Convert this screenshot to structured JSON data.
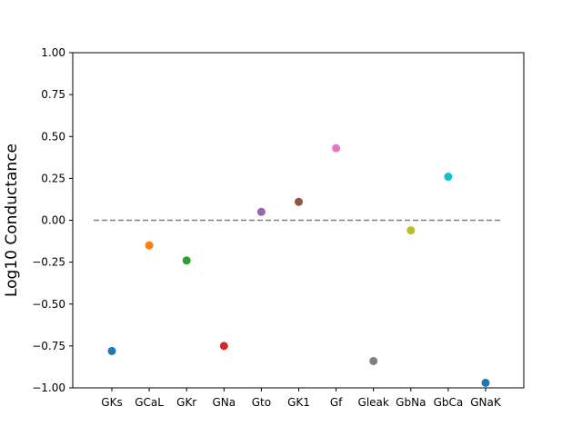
{
  "chart_data": {
    "type": "scatter",
    "title": "",
    "xlabel": "",
    "ylabel": "Log10 Conductance",
    "categories": [
      "GKs",
      "GCaL",
      "GKr",
      "GNa",
      "Gto",
      "GK1",
      "Gf",
      "Gleak",
      "GbNa",
      "GbCa",
      "GNaK"
    ],
    "values": [
      -0.78,
      -0.15,
      -0.24,
      -0.75,
      0.05,
      0.11,
      0.43,
      -0.84,
      -0.06,
      0.26,
      -0.97
    ],
    "colors": [
      "#1f77b4",
      "#ff7f0e",
      "#2ca02c",
      "#d62728",
      "#9467bd",
      "#8c564b",
      "#e377c2",
      "#7f7f7f",
      "#bcbd22",
      "#17becf",
      "#1f77b4"
    ],
    "ylim": [
      -1.0,
      1.0
    ],
    "yticks": [
      -1.0,
      -0.75,
      -0.5,
      -0.25,
      0.0,
      0.25,
      0.5,
      0.75,
      1.0
    ],
    "ytick_labels": [
      "−1.00",
      "−0.75",
      "−0.50",
      "−0.25",
      "0.00",
      "0.25",
      "0.50",
      "0.75",
      "1.00"
    ],
    "reference_line": {
      "y": 0.0,
      "style": "dashed",
      "color": "#808080"
    },
    "grid": false,
    "legend": "none"
  }
}
